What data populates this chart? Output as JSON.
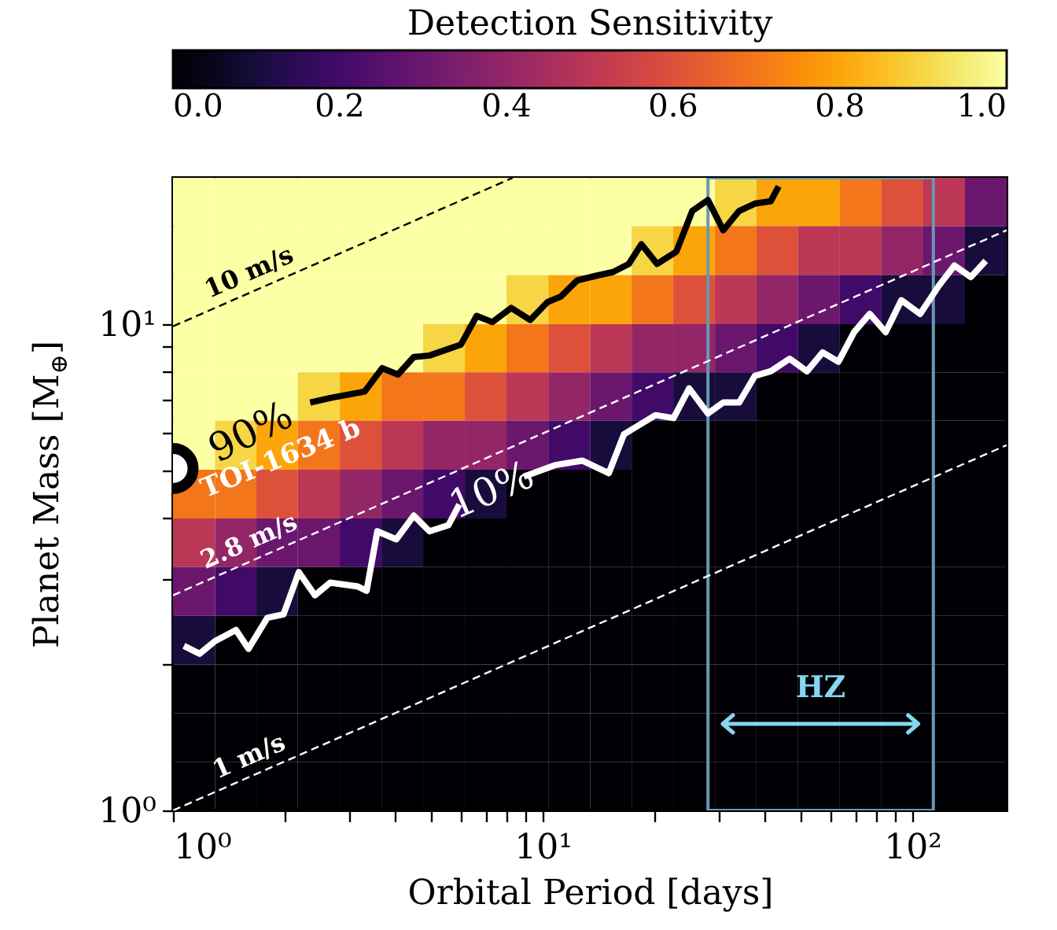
{
  "chart_data": {
    "type": "heatmap",
    "xlabel": "Orbital Period [days]",
    "ylabel": "Planet Mass [M$_{⊕}$]",
    "clabel": "Detection Sensitivity",
    "log": "xy",
    "xlim": [
      1,
      180
    ],
    "ylim": [
      1,
      20
    ],
    "xticks": [
      {
        "value": 1,
        "label": "10⁰"
      },
      {
        "value": 2,
        "label": null
      },
      {
        "value": 3,
        "label": null
      },
      {
        "value": 4,
        "label": null
      },
      {
        "value": 5,
        "label": null
      },
      {
        "value": 6,
        "label": null
      },
      {
        "value": 7,
        "label": null
      },
      {
        "value": 8,
        "label": null
      },
      {
        "value": 9,
        "label": null
      },
      {
        "value": 10,
        "label": "10¹"
      },
      {
        "value": 20,
        "label": null
      },
      {
        "value": 30,
        "label": null
      },
      {
        "value": 40,
        "label": null
      },
      {
        "value": 50,
        "label": null
      },
      {
        "value": 60,
        "label": null
      },
      {
        "value": 70,
        "label": null
      },
      {
        "value": 80,
        "label": null
      },
      {
        "value": 90,
        "label": null
      },
      {
        "value": 100,
        "label": "10²"
      }
    ],
    "yticks": [
      {
        "value": 1,
        "label": "10⁰"
      },
      {
        "value": 2,
        "label": null
      },
      {
        "value": 3,
        "label": null
      },
      {
        "value": 4,
        "label": null
      },
      {
        "value": 5,
        "label": null
      },
      {
        "value": 6,
        "label": null
      },
      {
        "value": 7,
        "label": null
      },
      {
        "value": 8,
        "label": null
      },
      {
        "value": 9,
        "label": null
      },
      {
        "value": 10,
        "label": "10¹"
      }
    ],
    "clim": [
      0,
      1
    ],
    "cticks": [
      {
        "value": 0,
        "label": "0.0"
      },
      {
        "value": 0.2,
        "label": "0.2"
      },
      {
        "value": 0.4,
        "label": "0.4"
      },
      {
        "value": 0.6,
        "label": "0.6"
      },
      {
        "value": 0.8,
        "label": "0.8"
      },
      {
        "value": 1,
        "label": "1.0"
      }
    ],
    "x": [
      1.14,
      1.48,
      1.91,
      2.48,
      3.22,
      4.17,
      5.41,
      7.01,
      9.09,
      11.8,
      15.3,
      19.8,
      25.7,
      33.3,
      43.1,
      55.9,
      72.5,
      94.0,
      122,
      158
    ],
    "y": [
      17.8,
      14.2,
      11.2,
      8.93,
      7.1,
      5.64,
      4.47,
      3.55,
      2.82,
      2.24,
      1.78,
      1.41,
      1.12
    ],
    "cells": [
      [
        1,
        1,
        1,
        1,
        1,
        1,
        1,
        1,
        1,
        1,
        1,
        1,
        1,
        0.9,
        0.8,
        0.8,
        0.7,
        0.6,
        0.5,
        0.3
      ],
      [
        1,
        1,
        1,
        1,
        1,
        1,
        1,
        1,
        1,
        1,
        1,
        0.9,
        0.8,
        0.7,
        0.6,
        0.5,
        0.5,
        0.4,
        0.3,
        0.1
      ],
      [
        1,
        1,
        1,
        1,
        1,
        1,
        1,
        1,
        0.9,
        0.8,
        0.8,
        0.7,
        0.6,
        0.5,
        0.4,
        0.3,
        0.2,
        0.1,
        0.1,
        0
      ],
      [
        1,
        1,
        1,
        1,
        1,
        1,
        0.9,
        0.8,
        0.7,
        0.6,
        0.5,
        0.4,
        0.4,
        0.3,
        0.2,
        0.1,
        0,
        0,
        0,
        0
      ],
      [
        1,
        1,
        1,
        0.9,
        0.8,
        0.7,
        0.7,
        0.6,
        0.5,
        0.4,
        0.3,
        0.2,
        0.1,
        0.1,
        0,
        0,
        0,
        0,
        0,
        0
      ],
      [
        1,
        0.9,
        0.8,
        0.7,
        0.6,
        0.5,
        0.4,
        0.4,
        0.3,
        0.2,
        0.1,
        0,
        0,
        0,
        0,
        0,
        0,
        0,
        0,
        0
      ],
      [
        0.7,
        0.7,
        0.6,
        0.5,
        0.4,
        0.3,
        0.2,
        0.1,
        0,
        0,
        0,
        0,
        0,
        0,
        0,
        0,
        0,
        0,
        0,
        0
      ],
      [
        0.5,
        0.4,
        0.3,
        0.3,
        0.2,
        0.1,
        0,
        0,
        0,
        0,
        0,
        0,
        0,
        0,
        0,
        0,
        0,
        0,
        0,
        0
      ],
      [
        0.3,
        0.2,
        0.1,
        0,
        0,
        0,
        0,
        0,
        0,
        0,
        0,
        0,
        0,
        0,
        0,
        0,
        0,
        0,
        0,
        0
      ],
      [
        0.1,
        0,
        0,
        0,
        0,
        0,
        0,
        0,
        0,
        0,
        0,
        0,
        0,
        0,
        0,
        0,
        0,
        0,
        0,
        0
      ],
      [
        0,
        0,
        0,
        0,
        0,
        0,
        0,
        0,
        0,
        0,
        0,
        0,
        0,
        0,
        0,
        0,
        0,
        0,
        0,
        0
      ],
      [
        0,
        0,
        0,
        0,
        0,
        0,
        0,
        0,
        0,
        0,
        0,
        0,
        0,
        0,
        0,
        0,
        0,
        0,
        0,
        0
      ],
      [
        0,
        0,
        0,
        0,
        0,
        0,
        0,
        0,
        0,
        0,
        0,
        0,
        0,
        0,
        0,
        0,
        0,
        0,
        0,
        0
      ]
    ],
    "series": [
      {
        "type": "line",
        "name": "10 m/s",
        "color": "#000000",
        "line_style": "dashed",
        "x": [
          1,
          8.3
        ],
        "values": [
          9.9,
          20
        ]
      },
      {
        "type": "line",
        "name": "2.8 m/s",
        "color": "#ffffff",
        "line_style": "dashed",
        "x": [
          1,
          180
        ],
        "values": [
          2.77,
          15.6
        ]
      },
      {
        "type": "line",
        "name": "1 m/s",
        "color": "#ffffff",
        "line_style": "dashed",
        "x": [
          1,
          180
        ],
        "values": [
          1,
          5.64
        ]
      },
      {
        "type": "line",
        "color": "#000000",
        "line_style": "solid",
        "x": [
          1,
          1.12,
          1.8,
          2.35,
          2.66,
          3.3,
          3.68,
          4.06,
          4.48,
          4.94,
          6.01,
          6.63,
          7.31,
          8.22,
          9.25,
          10.3,
          11.2,
          12.4,
          14.1,
          15.5,
          17.1,
          18.5,
          20.4,
          23.0,
          25.4,
          28.0,
          30.8,
          34.0,
          37.5,
          41.4,
          43.5
        ],
        "values": [
          5.05,
          5.2,
          null,
          6.9,
          7.05,
          7.27,
          8.12,
          7.88,
          8.56,
          8.62,
          9.08,
          10.4,
          10.1,
          10.8,
          10.2,
          11.1,
          11.4,
          12.3,
          12.6,
          12.8,
          13.3,
          14.6,
          13.3,
          14.1,
          17.1,
          18.0,
          15.6,
          17.1,
          17.7,
          17.9,
          19.2
        ]
      },
      {
        "type": "line",
        "color": "#ffffff",
        "line_style": "solid",
        "x": [
          1.07,
          1.18,
          1.3,
          1.48,
          1.6,
          1.8,
          1.99,
          2.19,
          2.42,
          2.66,
          3.15,
          3.34,
          3.57,
          4.02,
          4.48,
          4.94,
          5.56,
          5.95,
          7.3,
          8.89,
          10.8,
          12.8,
          15.1,
          16.6,
          20.2,
          22.6,
          24.9,
          28.0,
          30.8,
          34.0,
          37.5,
          41.4,
          46.6,
          51.9,
          57.2,
          63.1,
          69.6,
          76.7,
          84.7,
          93.4,
          105,
          118,
          130,
          144,
          158
        ],
        "values": [
          2.18,
          2.1,
          2.23,
          2.35,
          2.15,
          2.49,
          2.53,
          3.09,
          2.77,
          2.94,
          2.89,
          2.83,
          3.75,
          3.61,
          4.04,
          3.75,
          3.86,
          4.26,
          null,
          4.86,
          5.13,
          5.24,
          4.94,
          5.94,
          6.5,
          6.41,
          7.38,
          6.55,
          6.9,
          6.9,
          7.83,
          8.0,
          8.49,
          8.0,
          8.75,
          8.37,
          9.63,
          10.5,
          9.63,
          11.2,
          10.5,
          12.0,
          13.2,
          12.5,
          13.5
        ]
      },
      {
        "type": "scatter",
        "name": "TOI-1634 b",
        "color": "#000000",
        "marker": "circle",
        "x": [
          1
        ],
        "values": [
          5.05
        ]
      }
    ],
    "bands": [
      {
        "axis": "x",
        "from": 28,
        "to": 114,
        "label": "HZ",
        "color": "#669ab2"
      }
    ],
    "annotations": [
      "90%",
      "10%"
    ]
  }
}
